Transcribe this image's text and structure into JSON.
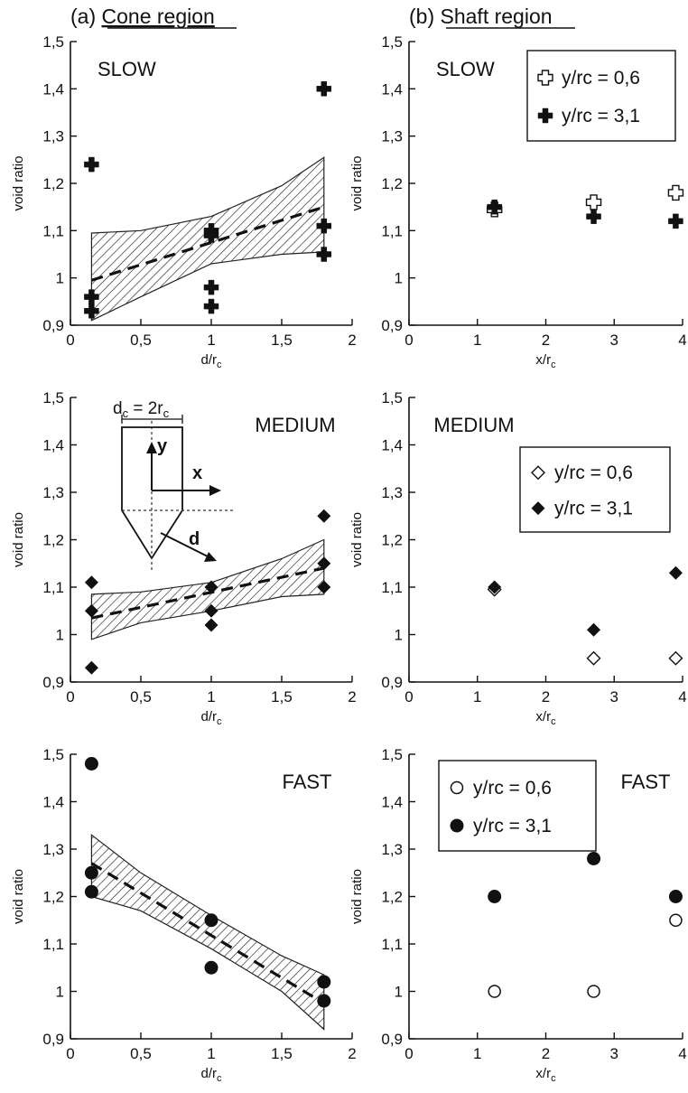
{
  "panel_titles": {
    "cone": {
      "prefix": "(a) ",
      "name": "Cone region"
    },
    "shaft": {
      "prefix": "(b) ",
      "name": "Shaft region"
    }
  },
  "inset_labels": {
    "dc_base": "d",
    "dc_sub": "c",
    "dc_eq": " = 2r",
    "dc_sub2": "c",
    "y": "y",
    "x": "x",
    "d": "d"
  },
  "colors": {
    "marker": "#111111",
    "band_hatch": "#222222"
  },
  "chart_data": [
    {
      "id": "slow-cone",
      "type": "scatter",
      "speed_label": "SLOW",
      "ylabel": "void ratio",
      "xlabel_base": "d/r",
      "xlabel_sub": "c",
      "xlim": [
        0,
        2
      ],
      "ylim": [
        0.9,
        1.5
      ],
      "xticks": [
        0,
        0.5,
        1,
        1.5,
        2
      ],
      "xtick_labels": [
        "0",
        "0,5",
        "1",
        "1,5",
        "2"
      ],
      "yticks": [
        0.9,
        1,
        1.1,
        1.2,
        1.3,
        1.4,
        1.5
      ],
      "ytick_labels": [
        "0,9",
        "1",
        "1,1",
        "1,2",
        "1,3",
        "1,4",
        "1,5"
      ],
      "series": [
        {
          "marker": "plus-filled",
          "points": [
            [
              0.15,
              1.24
            ],
            [
              0.15,
              0.96
            ],
            [
              0.15,
              0.93
            ],
            [
              1.0,
              1.1
            ],
            [
              1.0,
              1.09
            ],
            [
              1.0,
              0.98
            ],
            [
              1.0,
              0.94
            ],
            [
              1.8,
              1.4
            ],
            [
              1.8,
              1.11
            ],
            [
              1.8,
              1.05
            ]
          ]
        }
      ],
      "trend": {
        "x": [
          0.15,
          1.8
        ],
        "y": [
          0.995,
          1.15
        ]
      },
      "band": {
        "x": [
          0.15,
          0.5,
          1.0,
          1.5,
          1.8
        ],
        "upper": [
          1.095,
          1.1,
          1.13,
          1.195,
          1.255
        ],
        "lower": [
          0.91,
          0.96,
          1.03,
          1.05,
          1.055
        ]
      }
    },
    {
      "id": "slow-shaft",
      "type": "scatter",
      "speed_label": "SLOW",
      "ylabel": "void ratio",
      "xlabel_base": "x/r",
      "xlabel_sub": "c",
      "xlim": [
        0,
        4
      ],
      "ylim": [
        0.9,
        1.5
      ],
      "xticks": [
        0,
        1,
        2,
        3,
        4
      ],
      "xtick_labels": [
        "0",
        "1",
        "2",
        "3",
        "4"
      ],
      "yticks": [
        0.9,
        1,
        1.1,
        1.2,
        1.3,
        1.4,
        1.5
      ],
      "ytick_labels": [
        "0,9",
        "1",
        "1,1",
        "1,2",
        "1,3",
        "1,4",
        "1,5"
      ],
      "legend": {
        "position": "top-right",
        "entries": [
          {
            "marker": "plus-open",
            "label": "y/rc = 0,6"
          },
          {
            "marker": "plus-filled",
            "label": "y/rc = 3,1"
          }
        ]
      },
      "series": [
        {
          "name": "y/rc = 0,6",
          "marker": "plus-open",
          "points": [
            [
              1.25,
              1.145
            ],
            [
              2.7,
              1.16
            ],
            [
              3.9,
              1.18
            ]
          ]
        },
        {
          "name": "y/rc = 3,1",
          "marker": "plus-filled",
          "points": [
            [
              1.25,
              1.15
            ],
            [
              2.7,
              1.13
            ],
            [
              3.9,
              1.12
            ]
          ]
        }
      ]
    },
    {
      "id": "medium-cone",
      "type": "scatter",
      "speed_label": "MEDIUM",
      "ylabel": "void ratio",
      "xlabel_base": "d/r",
      "xlabel_sub": "c",
      "xlim": [
        0,
        2
      ],
      "ylim": [
        0.9,
        1.5
      ],
      "xticks": [
        0,
        0.5,
        1,
        1.5,
        2
      ],
      "xtick_labels": [
        "0",
        "0,5",
        "1",
        "1,5",
        "2"
      ],
      "yticks": [
        0.9,
        1,
        1.1,
        1.2,
        1.3,
        1.4,
        1.5
      ],
      "ytick_labels": [
        "0,9",
        "1",
        "1,1",
        "1,2",
        "1,3",
        "1,4",
        "1,5"
      ],
      "series": [
        {
          "marker": "diamond-filled",
          "points": [
            [
              0.15,
              1.11
            ],
            [
              0.15,
              1.05
            ],
            [
              0.15,
              0.93
            ],
            [
              1.0,
              1.1
            ],
            [
              1.0,
              1.05
            ],
            [
              1.0,
              1.02
            ],
            [
              1.8,
              1.25
            ],
            [
              1.8,
              1.15
            ],
            [
              1.8,
              1.1
            ]
          ]
        }
      ],
      "trend": {
        "x": [
          0.15,
          1.8
        ],
        "y": [
          1.035,
          1.14
        ]
      },
      "band": {
        "x": [
          0.15,
          0.5,
          1.0,
          1.5,
          1.8
        ],
        "upper": [
          1.085,
          1.09,
          1.11,
          1.16,
          1.2
        ],
        "lower": [
          0.99,
          1.025,
          1.05,
          1.08,
          1.085
        ]
      }
    },
    {
      "id": "medium-shaft",
      "type": "scatter",
      "speed_label": "MEDIUM",
      "ylabel": "void ratio",
      "xlabel_base": "x/r",
      "xlabel_sub": "c",
      "xlim": [
        0,
        4
      ],
      "ylim": [
        0.9,
        1.5
      ],
      "xticks": [
        0,
        1,
        2,
        3,
        4
      ],
      "xtick_labels": [
        "0",
        "1",
        "2",
        "3",
        "4"
      ],
      "yticks": [
        0.9,
        1,
        1.1,
        1.2,
        1.3,
        1.4,
        1.5
      ],
      "ytick_labels": [
        "0,9",
        "1",
        "1,1",
        "1,2",
        "1,3",
        "1,4",
        "1,5"
      ],
      "legend": {
        "position": "right",
        "entries": [
          {
            "marker": "diamond-open",
            "label": "y/rc = 0,6"
          },
          {
            "marker": "diamond-filled",
            "label": "y/rc = 3,1"
          }
        ]
      },
      "series": [
        {
          "name": "y/rc = 0,6",
          "marker": "diamond-open",
          "points": [
            [
              1.25,
              1.095
            ],
            [
              2.7,
              0.95
            ],
            [
              3.9,
              0.95
            ]
          ]
        },
        {
          "name": "y/rc = 3,1",
          "marker": "diamond-filled",
          "points": [
            [
              1.25,
              1.1
            ],
            [
              2.7,
              1.01
            ],
            [
              3.9,
              1.13
            ]
          ]
        }
      ]
    },
    {
      "id": "fast-cone",
      "type": "scatter",
      "speed_label": "FAST",
      "ylabel": "void ratio",
      "xlabel_base": "d/r",
      "xlabel_sub": "c",
      "xlim": [
        0,
        2
      ],
      "ylim": [
        0.9,
        1.5
      ],
      "xticks": [
        0,
        0.5,
        1,
        1.5,
        2
      ],
      "xtick_labels": [
        "0",
        "0,5",
        "1",
        "1,5",
        "2"
      ],
      "yticks": [
        0.9,
        1,
        1.1,
        1.2,
        1.3,
        1.4,
        1.5
      ],
      "ytick_labels": [
        "0,9",
        "1",
        "1,1",
        "1,2",
        "1,3",
        "1,4",
        "1,5"
      ],
      "series": [
        {
          "marker": "circle-filled",
          "points": [
            [
              0.15,
              1.48
            ],
            [
              0.15,
              1.25
            ],
            [
              0.15,
              1.21
            ],
            [
              1.0,
              1.15
            ],
            [
              1.0,
              1.05
            ],
            [
              1.8,
              1.02
            ],
            [
              1.8,
              0.98
            ]
          ]
        }
      ],
      "trend": {
        "x": [
          0.15,
          1.8
        ],
        "y": [
          1.27,
          0.975
        ]
      },
      "band": {
        "x": [
          0.15,
          0.5,
          1.0,
          1.5,
          1.8
        ],
        "upper": [
          1.33,
          1.25,
          1.16,
          1.075,
          1.035
        ],
        "lower": [
          1.2,
          1.17,
          1.09,
          1.0,
          0.92
        ]
      }
    },
    {
      "id": "fast-shaft",
      "type": "scatter",
      "speed_label": "FAST",
      "ylabel": "void ratio",
      "xlabel_base": "x/r",
      "xlabel_sub": "c",
      "xlim": [
        0,
        4
      ],
      "ylim": [
        0.9,
        1.5
      ],
      "xticks": [
        0,
        1,
        2,
        3,
        4
      ],
      "xtick_labels": [
        "0",
        "1",
        "2",
        "3",
        "4"
      ],
      "yticks": [
        0.9,
        1,
        1.1,
        1.2,
        1.3,
        1.4,
        1.5
      ],
      "ytick_labels": [
        "0,9",
        "1",
        "1,1",
        "1,2",
        "1,3",
        "1,4",
        "1,5"
      ],
      "legend": {
        "position": "top-left",
        "entries": [
          {
            "marker": "circle-open",
            "label": "y/rc = 0,6"
          },
          {
            "marker": "circle-filled",
            "label": "y/rc = 3,1"
          }
        ]
      },
      "series": [
        {
          "name": "y/rc = 0,6",
          "marker": "circle-open",
          "points": [
            [
              1.25,
              1.0
            ],
            [
              2.7,
              1.0
            ],
            [
              3.9,
              1.15
            ]
          ]
        },
        {
          "name": "y/rc = 3,1",
          "marker": "circle-filled",
          "points": [
            [
              1.25,
              1.2
            ],
            [
              2.7,
              1.28
            ],
            [
              3.9,
              1.2
            ]
          ]
        }
      ]
    }
  ]
}
